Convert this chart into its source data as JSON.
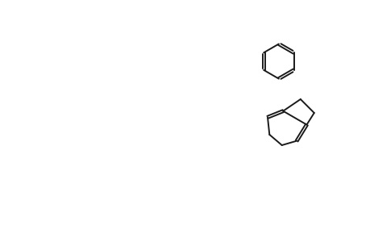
{
  "bg_color": "#ffffff",
  "line_color": "#1a1a1a",
  "line_width": 1.5,
  "title": "",
  "figsize": [
    4.6,
    3.0
  ],
  "dpi": 100
}
